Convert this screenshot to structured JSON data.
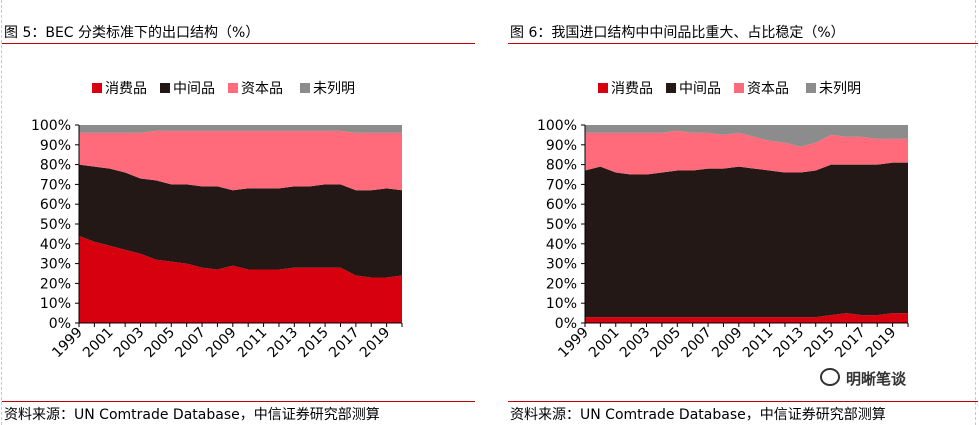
{
  "colors": {
    "consumer": "#d7000f",
    "intermediate": "#231815",
    "capital": "#ff6b7a",
    "unknown": "#8c8c8c"
  },
  "watermark": "明晰笔谈",
  "chart_data": [
    {
      "type": "area",
      "title": "图 5：BEC 分类标准下的出口结构（%）",
      "source": "资料来源：UN Comtrade Database，中信证券研究部测算",
      "x": [
        1999,
        2000,
        2001,
        2002,
        2003,
        2004,
        2005,
        2006,
        2007,
        2008,
        2009,
        2010,
        2011,
        2012,
        2013,
        2014,
        2015,
        2016,
        2017,
        2018,
        2019,
        2020
      ],
      "x_tick_labels": [
        "1999",
        "2001",
        "2003",
        "2005",
        "2007",
        "2009",
        "2011",
        "2013",
        "2015",
        "2017",
        "2019"
      ],
      "y_tick_labels": [
        "0%",
        "10%",
        "20%",
        "30%",
        "40%",
        "50%",
        "60%",
        "70%",
        "80%",
        "90%",
        "100%"
      ],
      "ylim": [
        0,
        100
      ],
      "series": [
        {
          "name": "消费品",
          "key": "consumer",
          "values": [
            44,
            41,
            39,
            37,
            35,
            32,
            31,
            30,
            28,
            27,
            29,
            27,
            27,
            27,
            28,
            28,
            28,
            28,
            24,
            23,
            23,
            24
          ]
        },
        {
          "name": "中间品",
          "key": "intermediate",
          "values": [
            36,
            38,
            39,
            39,
            38,
            40,
            39,
            40,
            41,
            42,
            38,
            41,
            41,
            41,
            41,
            41,
            42,
            42,
            43,
            44,
            45,
            43
          ]
        },
        {
          "name": "资本品",
          "key": "capital",
          "values": [
            16,
            17,
            18,
            20,
            23,
            25,
            27,
            27,
            28,
            28,
            30,
            29,
            29,
            29,
            28,
            28,
            27,
            27,
            29,
            29,
            28,
            29
          ]
        },
        {
          "name": "未列明",
          "key": "unknown",
          "values": [
            4,
            4,
            4,
            4,
            4,
            3,
            3,
            3,
            3,
            3,
            3,
            3,
            3,
            3,
            3,
            3,
            3,
            3,
            4,
            4,
            4,
            4
          ]
        }
      ]
    },
    {
      "type": "area",
      "title": "图 6：我国进口结构中中间品比重大、占比稳定（%）",
      "source": "资料来源：UN Comtrade Database，中信证券研究部测算",
      "x": [
        1999,
        2000,
        2001,
        2002,
        2003,
        2004,
        2005,
        2006,
        2007,
        2008,
        2009,
        2010,
        2011,
        2012,
        2013,
        2014,
        2015,
        2016,
        2017,
        2018,
        2019,
        2020
      ],
      "x_tick_labels": [
        "1999",
        "2001",
        "2003",
        "2005",
        "2007",
        "2009",
        "2011",
        "2013",
        "2015",
        "2017",
        "2019"
      ],
      "y_tick_labels": [
        "0%",
        "10%",
        "20%",
        "30%",
        "40%",
        "50%",
        "60%",
        "70%",
        "80%",
        "90%",
        "100%"
      ],
      "ylim": [
        0,
        100
      ],
      "series": [
        {
          "name": "消费品",
          "key": "consumer",
          "values": [
            3,
            3,
            3,
            3,
            3,
            3,
            3,
            3,
            3,
            3,
            3,
            3,
            3,
            3,
            3,
            3,
            4,
            5,
            4,
            4,
            5,
            5
          ]
        },
        {
          "name": "中间品",
          "key": "intermediate",
          "values": [
            74,
            76,
            73,
            72,
            72,
            73,
            74,
            74,
            75,
            75,
            76,
            75,
            74,
            73,
            73,
            74,
            76,
            75,
            76,
            76,
            76,
            76
          ]
        },
        {
          "name": "资本品",
          "key": "capital",
          "values": [
            19,
            17,
            20,
            21,
            21,
            20,
            20,
            19,
            18,
            17,
            17,
            16,
            15,
            15,
            13,
            14,
            15,
            14,
            14,
            13,
            12,
            12
          ]
        },
        {
          "name": "未列明",
          "key": "unknown",
          "values": [
            4,
            4,
            4,
            4,
            4,
            4,
            3,
            4,
            4,
            5,
            4,
            6,
            8,
            9,
            11,
            9,
            5,
            6,
            6,
            7,
            7,
            7
          ]
        }
      ]
    }
  ]
}
